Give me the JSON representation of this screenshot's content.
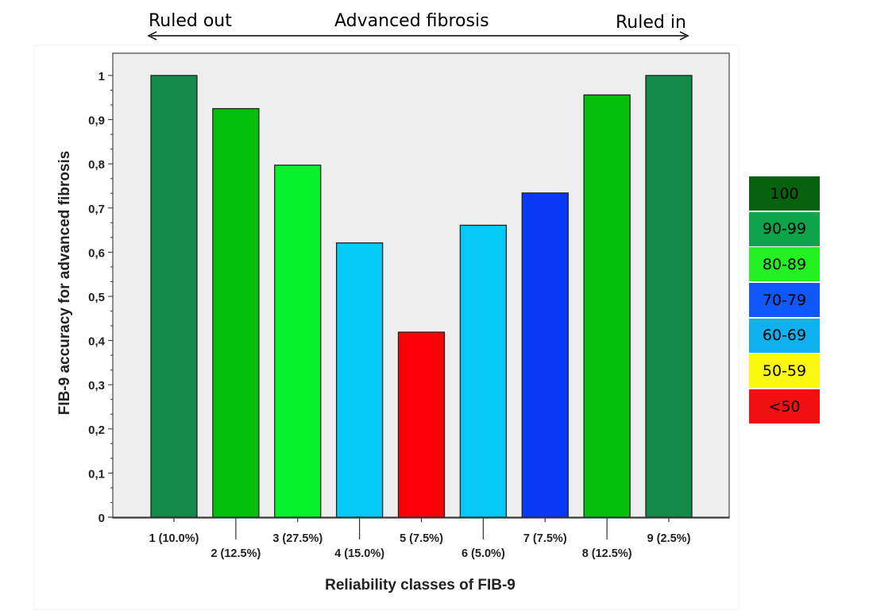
{
  "banner": {
    "left_label": "Ruled out",
    "center_label": "Advanced fibrosis",
    "right_label": "Ruled in"
  },
  "colors": {
    "plot_background": "#eeeeee",
    "bar_outline": "#222222"
  },
  "chart_data": {
    "type": "bar",
    "xlabel": "Reliability classes of FIB-9",
    "ylabel": "FIB-9 accuracy for advanced fibrosis",
    "ylim": [
      0,
      1
    ],
    "yticks": [
      "0",
      "0,1",
      "0,2",
      "0,3",
      "0,4",
      "0,5",
      "0,6",
      "0,7",
      "0,8",
      "0,9",
      "1"
    ],
    "grid": false,
    "categories": [
      "1 (10.0%)",
      "2 (12.5%)",
      "3 (27.5%)",
      "4 (15.0%)",
      "5 (7.5%)",
      "6 (5.0%)",
      "7 (7.5%)",
      "8 (12.5%)",
      "9 (2.5%)"
    ],
    "values": [
      1.0,
      0.925,
      0.797,
      0.621,
      0.419,
      0.661,
      0.734,
      0.956,
      1.0
    ],
    "bar_colors": [
      "#128a49",
      "#06bf0d",
      "#07f02c",
      "#06c9f8",
      "#fb0007",
      "#06c9f8",
      "#0939f5",
      "#06bf0d",
      "#128a49"
    ]
  },
  "legend": {
    "placement": "right",
    "items": [
      {
        "label": "100",
        "color": "#06620e"
      },
      {
        "label": "90-99",
        "color": "#0da34a"
      },
      {
        "label": "80-89",
        "color": "#22f021"
      },
      {
        "label": "70-79",
        "color": "#0f57f6"
      },
      {
        "label": "60-69",
        "color": "#0fb0ee"
      },
      {
        "label": "50-59",
        "color": "#fcf80f"
      },
      {
        "label": "<50",
        "color": "#f20f12"
      }
    ]
  }
}
